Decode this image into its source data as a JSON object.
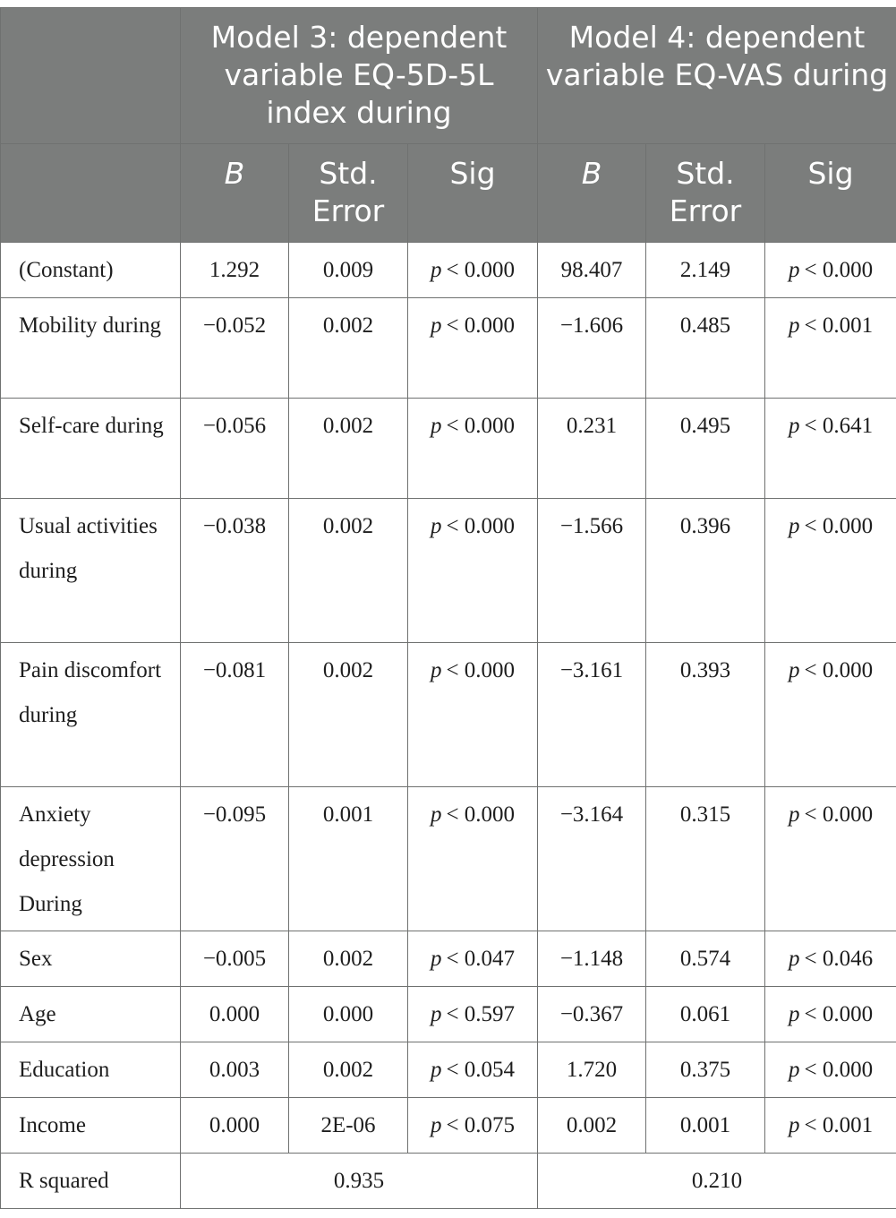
{
  "header": {
    "model3": "Model 3: dependent variable EQ-5D-5L index during",
    "model4": "Model 4: dependent variable EQ-VAS during",
    "sub": [
      "B",
      "Std. Error",
      "Sig",
      "B",
      "Std. Error",
      "Sig"
    ]
  },
  "rows": [
    {
      "label": "(Constant)",
      "m3_b": "1.292",
      "m3_se": "0.009",
      "m3_sig": "< 0.000",
      "m4_b": "98.407",
      "m4_se": "2.149",
      "m4_sig": "< 0.000"
    },
    {
      "label": "Mobility during",
      "m3_b": "−0.052",
      "m3_se": "0.002",
      "m3_sig": "< 0.000",
      "m4_b": "−1.606",
      "m4_se": "0.485",
      "m4_sig": "< 0.001"
    },
    {
      "label": "Self-care during",
      "m3_b": "−0.056",
      "m3_se": "0.002",
      "m3_sig": "< 0.000",
      "m4_b": "0.231",
      "m4_se": "0.495",
      "m4_sig": "< 0.641"
    },
    {
      "label": "Usual activities during",
      "m3_b": "−0.038",
      "m3_se": "0.002",
      "m3_sig": "< 0.000",
      "m4_b": "−1.566",
      "m4_se": "0.396",
      "m4_sig": "< 0.000"
    },
    {
      "label": "Pain discomfort during",
      "m3_b": "−0.081",
      "m3_se": "0.002",
      "m3_sig": "< 0.000",
      "m4_b": "−3.161",
      "m4_se": "0.393",
      "m4_sig": "< 0.000"
    },
    {
      "label": "Anxiety depression During",
      "m3_b": "−0.095",
      "m3_se": "0.001",
      "m3_sig": "< 0.000",
      "m4_b": "−3.164",
      "m4_se": "0.315",
      "m4_sig": "< 0.000"
    },
    {
      "label": "Sex",
      "m3_b": "−0.005",
      "m3_se": "0.002",
      "m3_sig": "< 0.047",
      "m4_b": "−1.148",
      "m4_se": "0.574",
      "m4_sig": "< 0.046"
    },
    {
      "label": "Age",
      "m3_b": "0.000",
      "m3_se": "0.000",
      "m3_sig": "< 0.597",
      "m4_b": "−0.367",
      "m4_se": "0.061",
      "m4_sig": "< 0.000"
    },
    {
      "label": "Education",
      "m3_b": "0.003",
      "m3_se": "0.002",
      "m3_sig": "< 0.054",
      "m4_b": "1.720",
      "m4_se": "0.375",
      "m4_sig": "< 0.000"
    },
    {
      "label": "Income",
      "m3_b": "0.000",
      "m3_se": "2E-06",
      "m3_sig": "< 0.075",
      "m4_b": "0.002",
      "m4_se": "0.001",
      "m4_sig": "< 0.001"
    }
  ],
  "rsquared": {
    "label": "R squared",
    "m3": "0.935",
    "m4": "0.210"
  },
  "p_symbol": "p"
}
